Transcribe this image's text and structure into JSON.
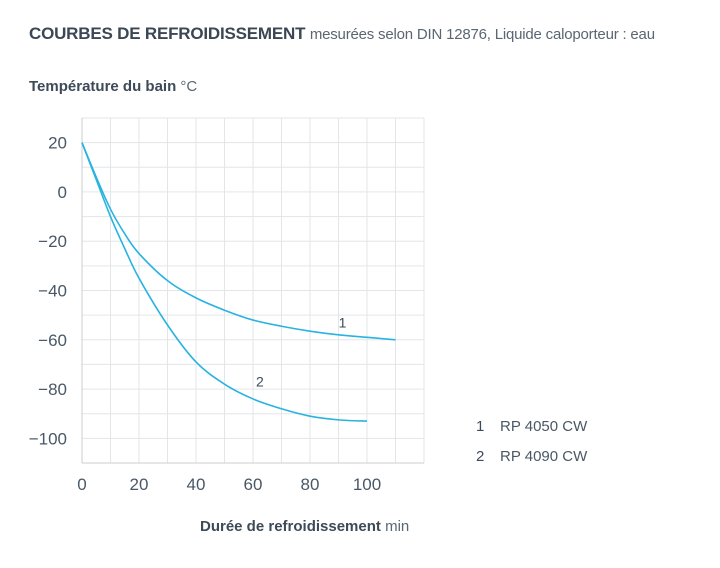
{
  "title": {
    "main": "COURBES DE REFROIDISSEMENT",
    "sub": "mesurées selon DIN 12876, Liquide caloporteur : eau"
  },
  "chart_data": {
    "type": "line",
    "title": "COURBES DE REFROIDISSEMENT",
    "subtitle": "mesurées selon DIN 12876, Liquide caloporteur : eau",
    "ylabel": "Température du bain",
    "yunit": "°C",
    "xlabel": "Durée de refroidissement",
    "xunit": "min",
    "xlim": [
      0,
      120
    ],
    "ylim": [
      -110,
      30
    ],
    "xticks": [
      0,
      20,
      40,
      60,
      80,
      100
    ],
    "yticks": [
      20,
      0,
      -20,
      -40,
      -60,
      -80,
      -100
    ],
    "grid": true,
    "legend_position": "bottom-right",
    "line_color": "#29b3e0",
    "series": [
      {
        "id": "1",
        "name": "RP 4050 CW",
        "x": [
          0,
          5,
          10,
          15,
          20,
          30,
          40,
          50,
          60,
          70,
          80,
          90,
          100,
          110
        ],
        "y": [
          20,
          6,
          -7,
          -17,
          -25,
          -36,
          -43,
          -48,
          -52,
          -54.5,
          -56.5,
          -58,
          -59,
          -60
        ],
        "label_at": [
          90,
          -53
        ]
      },
      {
        "id": "2",
        "name": "RP 4090 CW",
        "x": [
          0,
          5,
          10,
          15,
          20,
          30,
          40,
          50,
          60,
          70,
          80,
          90,
          100
        ],
        "y": [
          20,
          5,
          -10,
          -23,
          -35,
          -54,
          -69,
          -78,
          -84,
          -88,
          -91,
          -92.5,
          -93
        ],
        "label_at": [
          61,
          -77
        ]
      }
    ]
  },
  "legend": [
    {
      "num": "1",
      "name": "RP 4050 CW"
    },
    {
      "num": "2",
      "name": "RP 4090 CW"
    }
  ]
}
